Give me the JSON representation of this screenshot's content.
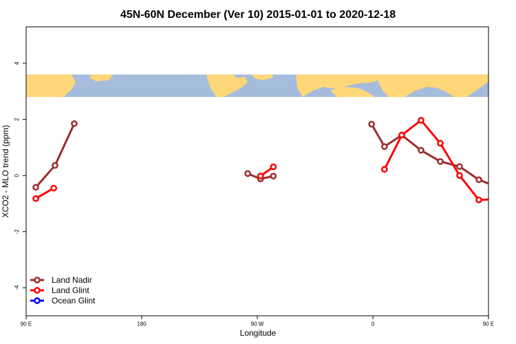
{
  "chart_data": {
    "type": "line",
    "title": "45N-60N December (Ver 10)   2015-01-01 to 2020-12-18",
    "xlabel": "Longitude",
    "ylabel": "XCO2 - MLO trend (ppm)",
    "xlim": [
      90,
      450
    ],
    "ylim": [
      -5.0,
      5.3
    ],
    "x_ticks": [
      {
        "value": 90,
        "label": "90 E"
      },
      {
        "value": 180,
        "label": "180"
      },
      {
        "value": 270,
        "label": "90 W"
      },
      {
        "value": 360,
        "label": "0"
      },
      {
        "value": 450,
        "label": "90 E"
      },
      {
        "value": 540,
        "label": "180"
      }
    ],
    "y_ticks": [
      -4,
      -2,
      0,
      2,
      4
    ],
    "map_band": {
      "ymin": 2.8,
      "ymax": 3.6,
      "ocean_color": "#a6bcdc",
      "land_color": "#fed778"
    },
    "series": [
      {
        "name": "Land Nadir",
        "color": "#9c2c2c",
        "segments": [
          [
            [
              97.5,
              -0.42
            ],
            [
              112.5,
              0.36
            ],
            [
              127.5,
              1.85
            ]
          ],
          [
            [
              262.5,
              0.07
            ],
            [
              272.5,
              -0.12
            ],
            [
              282.5,
              -0.02
            ]
          ],
          [
            [
              359,
              1.83
            ],
            [
              369,
              1.03
            ],
            [
              382.5,
              1.44
            ],
            [
              397.5,
              0.9
            ],
            [
              412.5,
              0.5
            ],
            [
              427.5,
              0.32
            ],
            [
              442.5,
              -0.15
            ],
            [
              457.5,
              -0.42
            ],
            [
              472.5,
              0.36
            ],
            [
              487.5,
              1.86
            ]
          ]
        ]
      },
      {
        "name": "Land Glint",
        "color": "#ff0000",
        "segments": [
          [
            [
              97.5,
              -0.82
            ],
            [
              111.5,
              -0.45
            ]
          ],
          [
            [
              272.5,
              -0.02
            ],
            [
              282.5,
              0.31
            ]
          ],
          [
            [
              369,
              0.22
            ],
            [
              382.5,
              1.44
            ],
            [
              397.5,
              1.97
            ],
            [
              412.5,
              1.15
            ],
            [
              427.5,
              0.0
            ],
            [
              442.5,
              -0.87
            ],
            [
              457.5,
              -0.84
            ],
            [
              467.5,
              -0.45
            ]
          ]
        ]
      },
      {
        "name": "Ocean Glint",
        "color": "#0000ff",
        "segments": []
      }
    ],
    "legend_position": "bottom-left",
    "grid": false
  }
}
